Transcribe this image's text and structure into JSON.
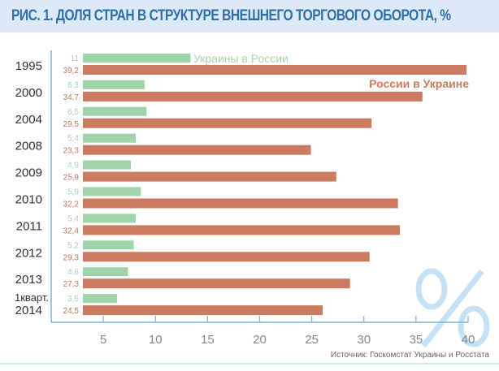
{
  "title": "РИС. 1. ДОЛЯ СТРАН В СТРУКТУРЕ ВНЕШНЕГО ТОРГОВОГО ОБОРОТА, %",
  "watermark": "%",
  "source": "Источник: Госкомстат Украины и Росстата",
  "colors": {
    "green": "#9fd4a9",
    "orange": "#cc7b61",
    "green_label": "#a9d3ae",
    "orange_label": "#c4765d",
    "axis": "#7fb0d8"
  },
  "chart_data": {
    "type": "bar",
    "orientation": "horizontal",
    "title": "РИС. 1. ДОЛЯ СТРАН В СТРУКТУРЕ ВНЕШНЕГО ТОРГОВОГО ОБОРОТА, %",
    "categories": [
      [
        "1995"
      ],
      [
        "2000"
      ],
      [
        "2004"
      ],
      [
        "2008"
      ],
      [
        "2009"
      ],
      [
        "2010"
      ],
      [
        "2011"
      ],
      [
        "2012"
      ],
      [
        "2013"
      ],
      [
        "1кварт.",
        "2014"
      ]
    ],
    "series": [
      {
        "name": "Украины в России",
        "values": [
          11,
          6.3,
          6.5,
          5.4,
          4.9,
          5.9,
          5.4,
          5.2,
          4.6,
          3.5
        ],
        "labels": [
          "11",
          "6,3",
          "6,5",
          "5,4",
          "4,9",
          "5,9",
          "5,4",
          "5,2",
          "4,6",
          "3,5"
        ]
      },
      {
        "name": "России в Украине",
        "values": [
          39.2,
          34.7,
          29.5,
          23.3,
          25.9,
          32.2,
          32.4,
          29.3,
          27.3,
          24.5
        ],
        "labels": [
          "39,2",
          "34,7",
          "29,5",
          "23,3",
          "25,9",
          "32,2",
          "32,4",
          "29,3",
          "27,3",
          "24,5"
        ]
      }
    ],
    "xticks": [
      "5",
      "10",
      "15",
      "20",
      "25",
      "30",
      "35",
      "40"
    ],
    "xlim": [
      0,
      40
    ],
    "legend": "inline"
  }
}
